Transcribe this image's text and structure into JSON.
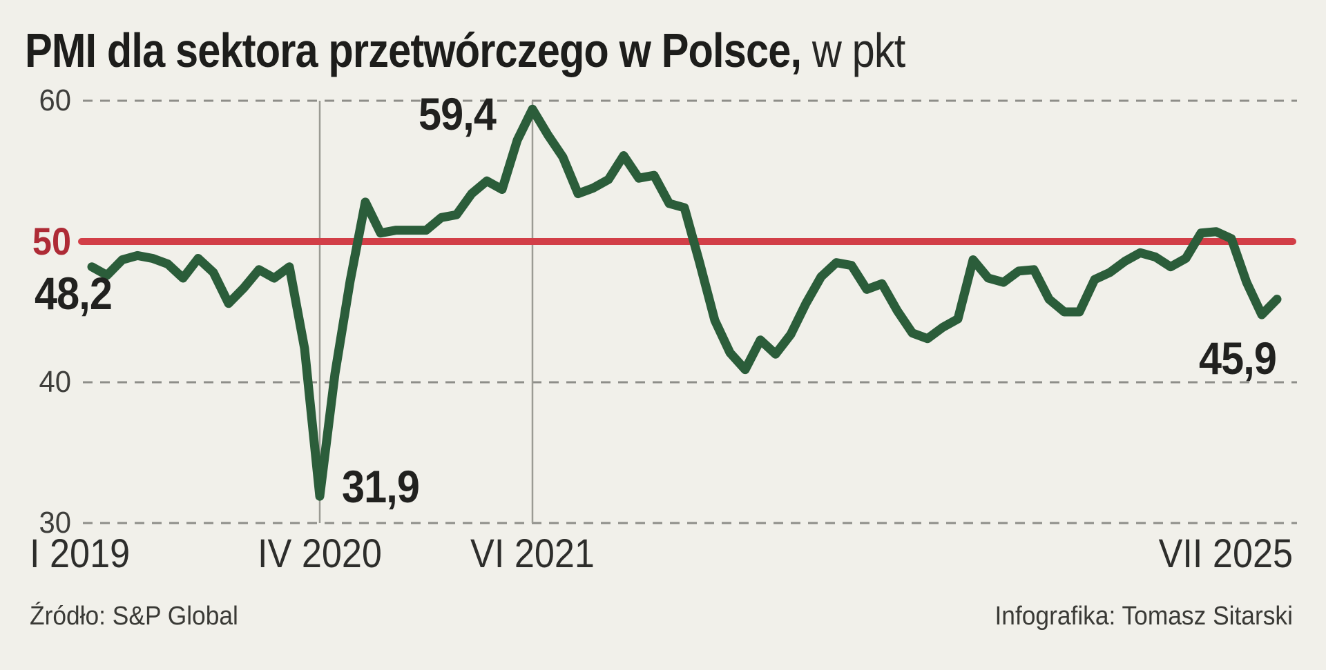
{
  "title": {
    "bold": "PMI dla sektora przetwórczego w Polsce,",
    "regular": " w pkt"
  },
  "footer": {
    "source": "Źródło: S&P Global",
    "credit": "Infografika: Tomasz Sitarski"
  },
  "chart_data": {
    "type": "line",
    "title": "PMI dla sektora przetwórczego w Polsce, w pkt",
    "unit": "pkt",
    "x_range": {
      "start_label": "I 2019",
      "end_label": "VII 2025",
      "frequency": "monthly"
    },
    "values": [
      48.2,
      47.6,
      48.7,
      49.0,
      48.8,
      48.4,
      47.4,
      48.8,
      47.8,
      45.6,
      46.7,
      48.0,
      47.4,
      48.2,
      42.4,
      31.9,
      40.6,
      47.2,
      52.8,
      50.6,
      50.8,
      50.8,
      50.8,
      51.7,
      51.9,
      53.4,
      54.3,
      53.7,
      57.2,
      59.4,
      57.6,
      56.0,
      53.4,
      53.8,
      54.4,
      56.1,
      54.5,
      54.7,
      52.7,
      52.4,
      48.5,
      44.4,
      42.1,
      40.9,
      43.0,
      42.0,
      43.4,
      45.6,
      47.5,
      48.5,
      48.3,
      46.6,
      47.0,
      45.1,
      43.5,
      43.1,
      43.9,
      44.5,
      48.7,
      47.4,
      47.1,
      47.9,
      48.0,
      45.9,
      45.0,
      45.0,
      47.3,
      47.8,
      48.6,
      49.2,
      48.9,
      48.2,
      48.8,
      50.6,
      50.7,
      50.2,
      47.1,
      44.8,
      45.9
    ],
    "ylim": [
      28.5,
      61
    ],
    "yticks": [
      {
        "value": 60,
        "label": "60"
      },
      {
        "value": 50,
        "label": "50"
      },
      {
        "value": 40,
        "label": "40"
      },
      {
        "value": 30,
        "label": "30"
      }
    ],
    "xticks": [
      {
        "label": "I 2019",
        "month_index": 0
      },
      {
        "label": "IV 2020",
        "month_index": 15
      },
      {
        "label": "VI 2021",
        "month_index": 29
      },
      {
        "label": "VII 2025",
        "month_index": 78
      }
    ],
    "vertical_markers": [
      15,
      29
    ],
    "reference_line": {
      "value": 50,
      "label": "50"
    },
    "annotations": [
      {
        "label": "48,2",
        "month_index": 0,
        "value": 48.2
      },
      {
        "label": "31,9",
        "month_index": 15,
        "value": 31.9
      },
      {
        "label": "59,4",
        "month_index": 29,
        "value": 59.4
      },
      {
        "label": "45,9",
        "month_index": 78,
        "value": 45.9
      }
    ],
    "grid": "dashed horizontal",
    "legend": "none",
    "colors": {
      "line": "#2b5d3a",
      "reference_line": "#d23e47",
      "reference_label": "#ae2b36",
      "grid": "#8e8e89",
      "marker_line": "#9b9b94",
      "background": "#f1f0ea",
      "text": "#21211f"
    }
  }
}
